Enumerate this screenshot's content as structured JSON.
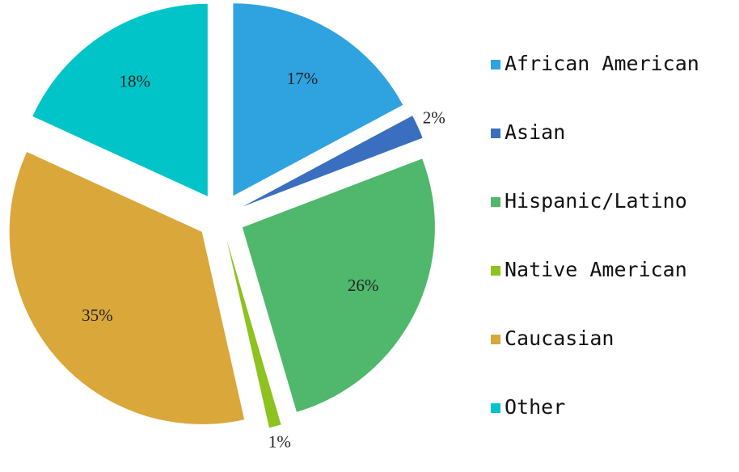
{
  "chart_data": {
    "type": "pie",
    "categories": [
      "African American",
      "Asian",
      "Hispanic/Latino",
      "Native American",
      "Caucasian",
      "Other"
    ],
    "values": [
      17,
      2,
      26,
      1,
      35,
      18
    ],
    "value_labels": [
      "17%",
      "2%",
      "26%",
      "1%",
      "35%",
      "18%"
    ],
    "colors": [
      "#2ea3e0",
      "#3a6fc0",
      "#4fb86c",
      "#8dc21f",
      "#d9a73a",
      "#00c4c8"
    ],
    "legend": "right"
  }
}
